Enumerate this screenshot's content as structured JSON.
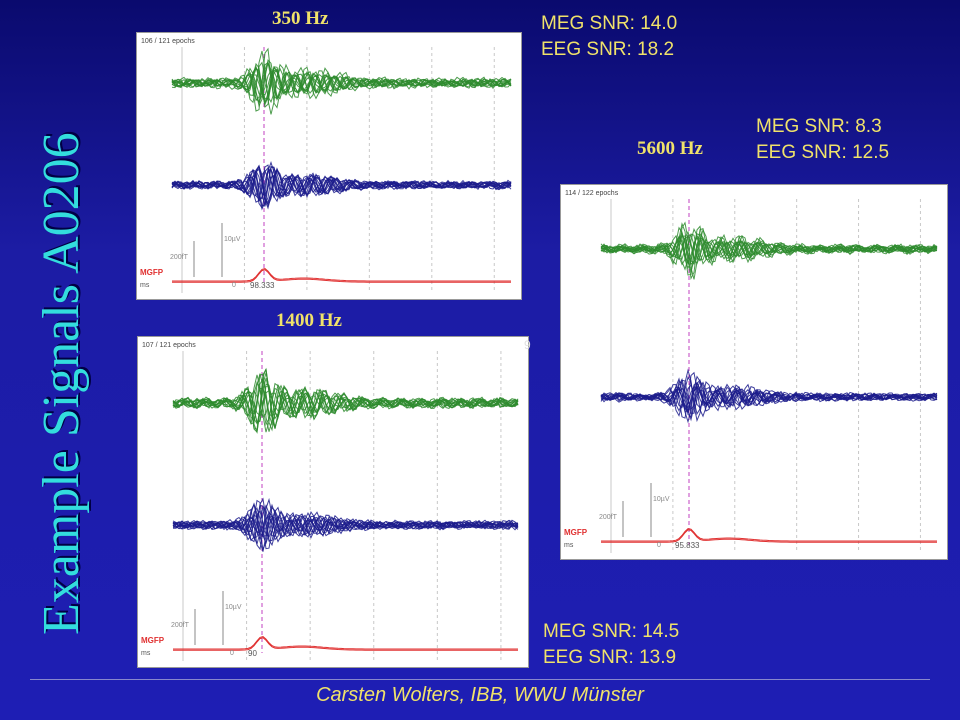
{
  "slide": {
    "title": "Example Signals A0206",
    "footer": "Carsten Wolters, IBB, WWU Münster"
  },
  "panels": [
    {
      "freq": "350 Hz",
      "epochs": "106 / 121 epochs",
      "meg_snr": "MEG SNR: 14.0",
      "eeg_snr": "EEG SNR: 18.2",
      "scale_ft": "200fT",
      "scale_uv": "10µV",
      "mgfp": "MGFP",
      "ms": "ms",
      "zero": "0",
      "latency": "98.333"
    },
    {
      "freq": "1400 Hz",
      "epochs": "107 / 121 epochs",
      "meg_snr": "MEG SNR: 14.5",
      "eeg_snr": "EEG SNR: 13.9",
      "scale_ft": "200fT",
      "scale_uv": "10µV",
      "mgfp": "MGFP",
      "ms": "ms",
      "zero": "0",
      "latency": "90"
    },
    {
      "freq": "5600 Hz",
      "epochs": "114 / 122 epochs",
      "meg_snr": "MEG SNR: 8.3",
      "eeg_snr": "EEG SNR: 12.5",
      "scale_ft": "200fT",
      "scale_uv": "10µV",
      "mgfp": "MGFP",
      "ms": "ms",
      "zero": "0",
      "latency": "95.833"
    }
  ],
  "colors": {
    "meg": "#2e8b2e",
    "eeg": "#1c1c8c",
    "mgfp": "#e03030",
    "text": "#f0e26a",
    "title": "#33dddd"
  }
}
